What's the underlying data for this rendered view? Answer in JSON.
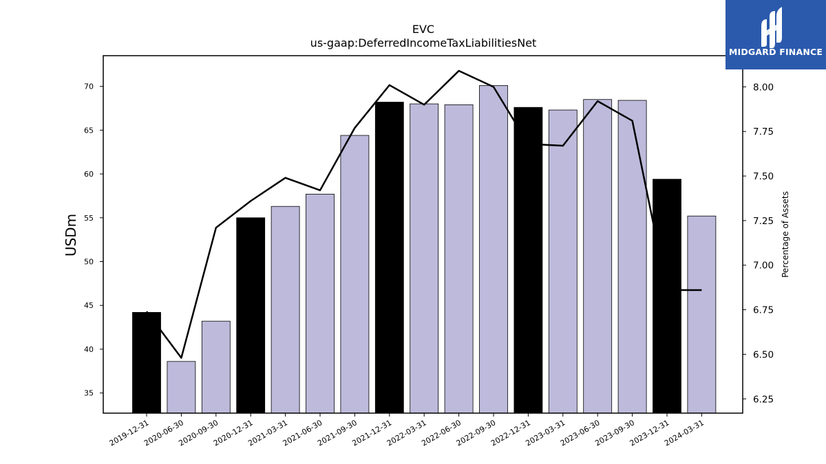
{
  "chart_data": {
    "type": "bar",
    "title": "EVC",
    "subtitle": "us-gaap:DeferredIncomeTaxLiabilitiesNet",
    "ylabel": "USDm",
    "ylabel_right": "Percentage of Assets",
    "categories": [
      "2019-12-31",
      "2020-06-30",
      "2020-09-30",
      "2020-12-31",
      "2021-03-31",
      "2021-06-30",
      "2021-09-30",
      "2021-12-31",
      "2022-03-31",
      "2022-06-30",
      "2022-09-30",
      "2022-12-31",
      "2023-03-31",
      "2023-06-30",
      "2023-09-30",
      "2023-12-31",
      "2024-03-31"
    ],
    "series": [
      {
        "kind": "bar",
        "values": [
          44.2,
          38.6,
          43.2,
          55.0,
          56.3,
          57.7,
          64.4,
          68.2,
          68.0,
          67.9,
          70.1,
          67.6,
          67.3,
          68.5,
          68.4,
          59.4,
          55.2
        ],
        "highlight": [
          true,
          false,
          false,
          true,
          false,
          false,
          false,
          true,
          false,
          false,
          false,
          true,
          false,
          false,
          false,
          true,
          false
        ],
        "color": "#bdbadb",
        "highlight_color": "#000000"
      },
      {
        "kind": "line",
        "axis": "right",
        "values": [
          6.74,
          6.48,
          7.21,
          7.36,
          7.49,
          7.42,
          7.77,
          8.01,
          7.9,
          8.09,
          8.0,
          7.68,
          7.67,
          7.92,
          7.81,
          6.86,
          6.86
        ],
        "color": "#000000"
      }
    ],
    "ylim": [
      32.7,
      73.5
    ],
    "yticks": [
      35,
      40,
      45,
      50,
      55,
      60,
      65,
      70
    ],
    "ylim_right": [
      6.17,
      8.175
    ],
    "yticks_right": [
      "6.25",
      "6.50",
      "6.75",
      "7.00",
      "7.25",
      "7.50",
      "7.75",
      "8.00"
    ],
    "grid": false
  },
  "logo": {
    "text": "MIDGARD FINANCE",
    "color": "#2b5aad"
  }
}
